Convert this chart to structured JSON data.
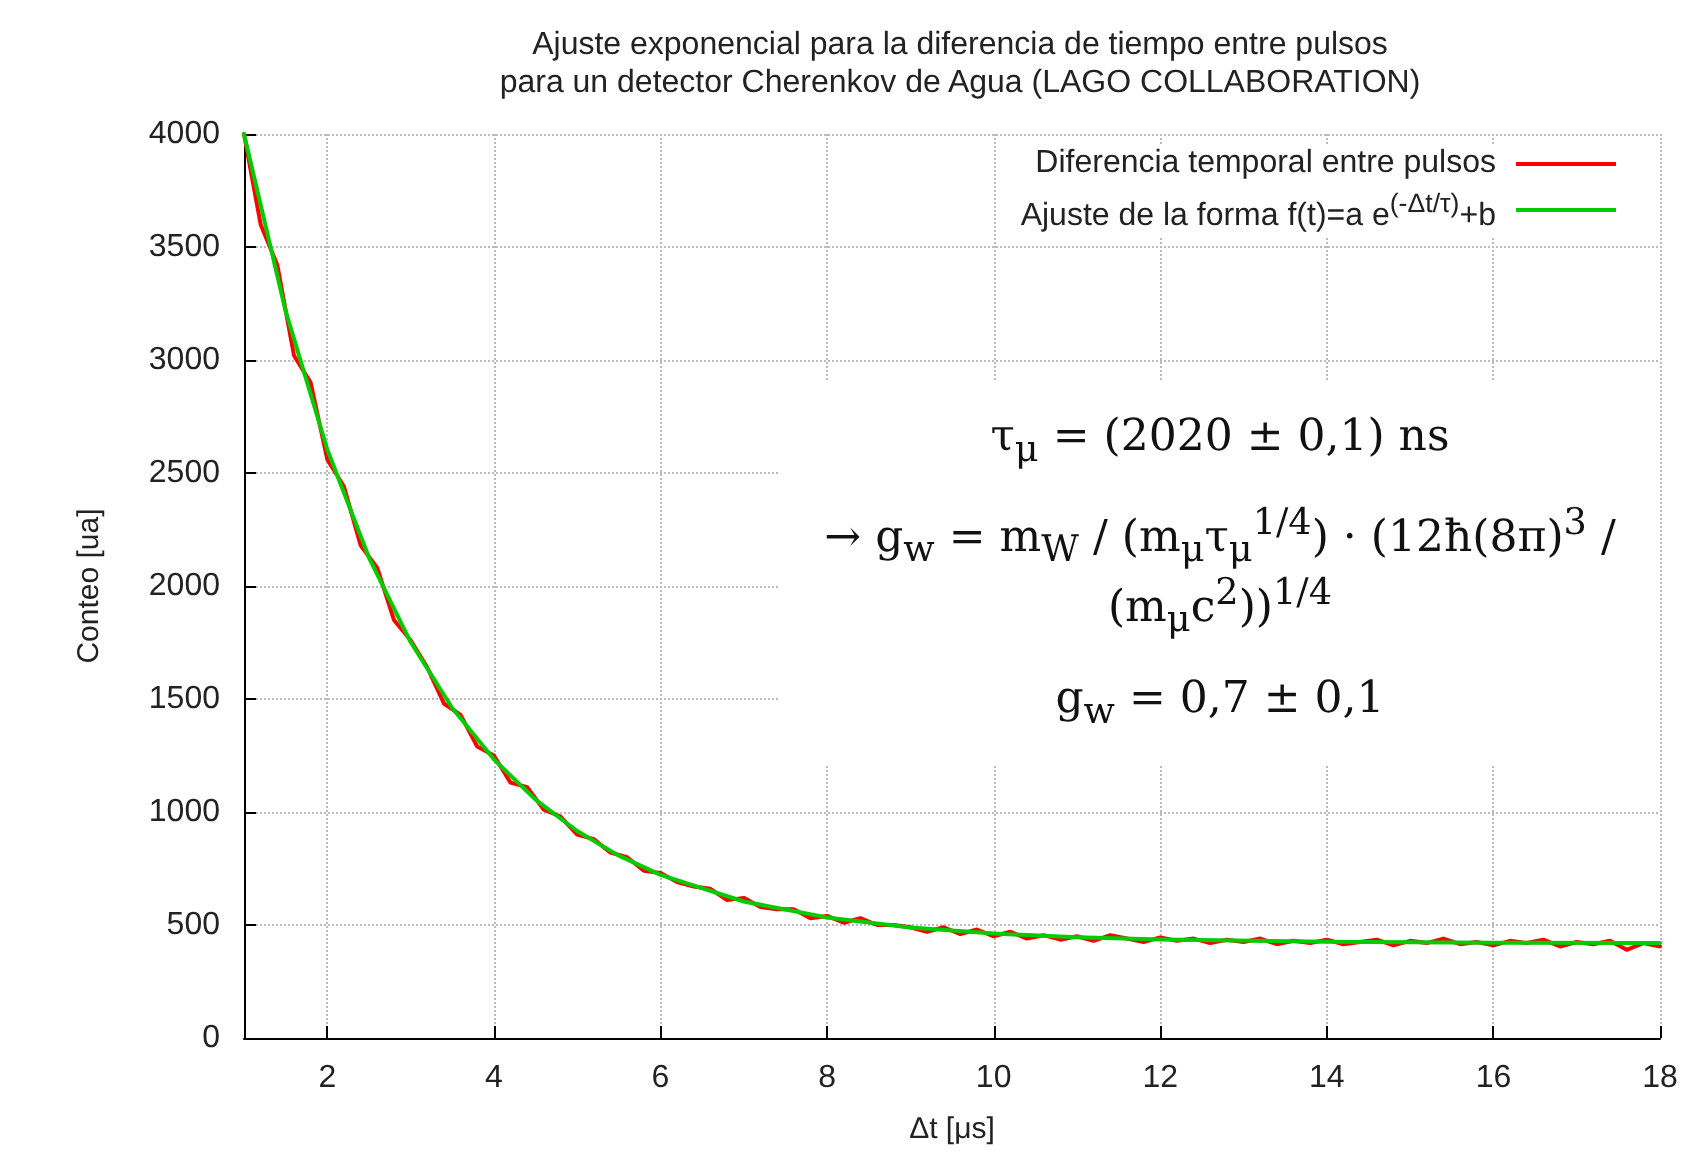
{
  "chart_data": {
    "type": "line",
    "title": "Ajuste exponencial para la diferencia de tiempo entre pulsos\npara un detector Cherenkov de Agua (LAGO COLLABORATION)",
    "xlabel": "Δt [μs]",
    "ylabel": "Conteo [ua]",
    "xlim": [
      1,
      18
    ],
    "xticks": [
      2,
      4,
      6,
      8,
      10,
      12,
      14,
      16,
      18
    ],
    "ylim": [
      0,
      4000
    ],
    "yticks": [
      0,
      500,
      1000,
      1500,
      2000,
      2500,
      3000,
      3500,
      4000
    ],
    "grid": true,
    "legend": "top right",
    "marker": "none",
    "line_style": "solid",
    "annotations": [
      "τ$_{μ}$ = (2020 ± 0,1) ns",
      "→ g$_{w}$ = m$_{W}$ / (m$_{μ}$τ$_{μ}$$^{1/4}$) · (12ħ(8π)$^{3}$ / (m$_{μ}$c$^{2}$))$^{1/4}$",
      "g$_{w}$ = 0,7 ± 0,1"
    ],
    "series": [
      {
        "name": "Diferencia temporal entre pulsos",
        "color": "#ff0000",
        "x": [
          1,
          1.2,
          1.4,
          1.6,
          1.8,
          2,
          2.2,
          2.4,
          2.6,
          2.8,
          3,
          3.2,
          3.4,
          3.6,
          3.8,
          4,
          4.2,
          4.4,
          4.6,
          4.8,
          5,
          5.2,
          5.4,
          5.6,
          5.8,
          6,
          6.2,
          6.4,
          6.6,
          6.8,
          7,
          7.2,
          7.4,
          7.6,
          7.8,
          8,
          8.2,
          8.4,
          8.6,
          8.8,
          9,
          9.2,
          9.4,
          9.6,
          9.8,
          10,
          10.2,
          10.4,
          10.6,
          10.8,
          11,
          11.2,
          11.4,
          11.6,
          11.8,
          12,
          12.2,
          12.4,
          12.6,
          12.8,
          13,
          13.2,
          13.4,
          13.6,
          13.8,
          14,
          14.2,
          14.4,
          14.6,
          14.8,
          15,
          15.2,
          15.4,
          15.6,
          15.8,
          16,
          16.2,
          16.4,
          16.6,
          16.8,
          17,
          17.2,
          17.4,
          17.6,
          17.8,
          18
        ],
        "values": [
          4000,
          3600,
          3420,
          3020,
          2900,
          2560,
          2440,
          2180,
          2080,
          1850,
          1760,
          1640,
          1480,
          1430,
          1290,
          1250,
          1130,
          1110,
          1010,
          980,
          900,
          880,
          820,
          800,
          740,
          730,
          690,
          670,
          660,
          610,
          620,
          580,
          570,
          570,
          530,
          540,
          510,
          530,
          500,
          500,
          490,
          470,
          490,
          460,
          480,
          450,
          470,
          440,
          455,
          435,
          450,
          430,
          455,
          440,
          425,
          445,
          430,
          440,
          420,
          435,
          425,
          440,
          415,
          430,
          420,
          435,
          415,
          425,
          435,
          410,
          430,
          420,
          440,
          415,
          425,
          410,
          430,
          420,
          435,
          405,
          425,
          415,
          430,
          390,
          420,
          405
        ]
      },
      {
        "name": "Ajuste de la forma f(t)=a e$^{(-Δt/τ)}$+b",
        "color": "#00cc00",
        "x": [
          1,
          1.5,
          2,
          2.5,
          3,
          3.5,
          4,
          4.5,
          5,
          5.5,
          6,
          7,
          8,
          9,
          10,
          11,
          12,
          14,
          16,
          18
        ],
        "values": [
          4000,
          3216,
          2604,
          2126,
          1752,
          1460,
          1233,
          1055,
          916,
          807,
          722,
          604,
          533,
          489,
          462,
          446,
          436,
          426,
          422,
          420
        ]
      }
    ]
  }
}
